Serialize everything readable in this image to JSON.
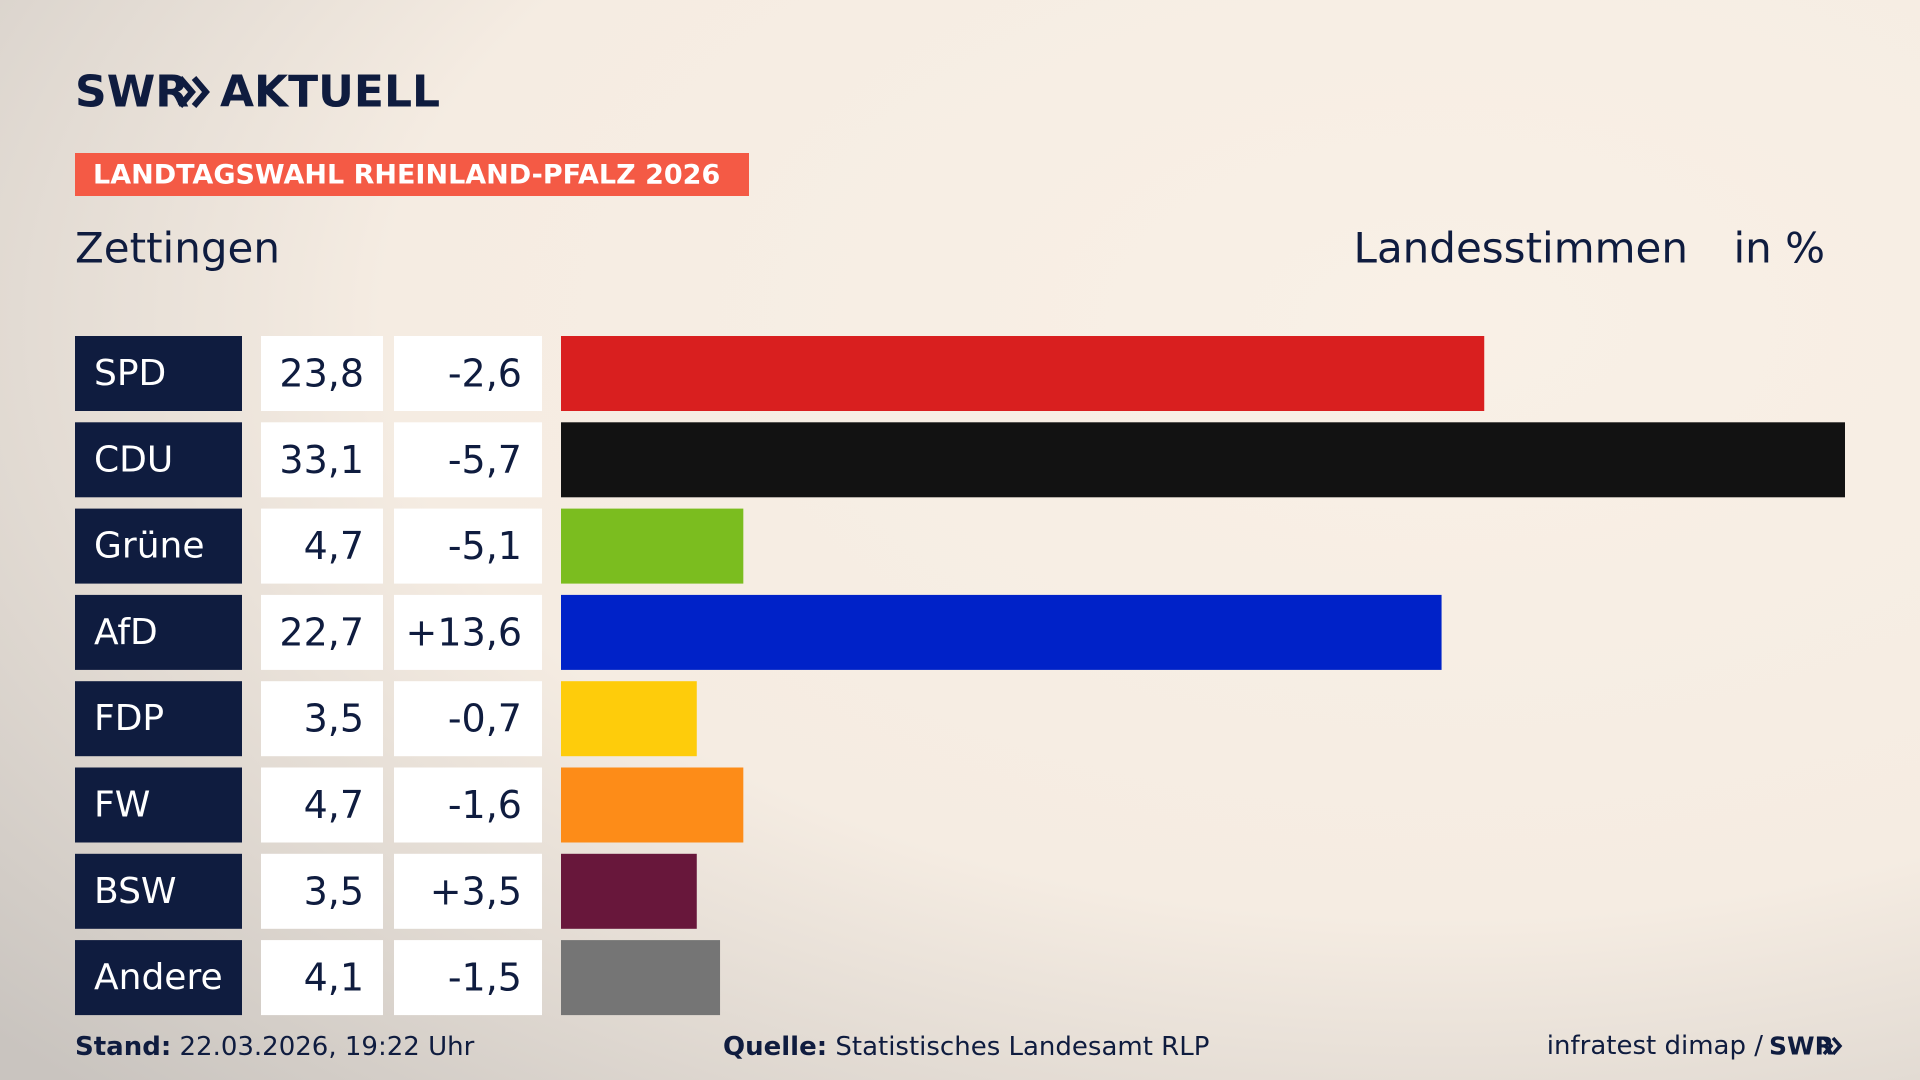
{
  "brand": {
    "logo": "SWR",
    "name": "AKTUELL"
  },
  "tag": "LANDTAGSWAHL RHEINLAND-PFALZ 2026",
  "chart_data": {
    "type": "bar",
    "title": "Zettingen",
    "subtitle": "Landesstimmen",
    "unit": "in %",
    "categories": [
      "SPD",
      "CDU",
      "Grüne",
      "AfD",
      "FDP",
      "FW",
      "BSW",
      "Andere"
    ],
    "values": [
      23.8,
      33.1,
      4.7,
      22.7,
      3.5,
      4.7,
      3.5,
      4.1
    ],
    "value_labels": [
      "23,8",
      "33,1",
      "4,7",
      "22,7",
      "3,5",
      "4,7",
      "3,5",
      "4,1"
    ],
    "changes": [
      -2.6,
      -5.7,
      -5.1,
      13.6,
      -0.7,
      -1.6,
      3.5,
      -1.5
    ],
    "change_labels": [
      "-2,6",
      "-5,7",
      "-5,1",
      "+13,6",
      "-0,7",
      "-1,6",
      "+3,5",
      "-1,5"
    ],
    "colors": [
      "#d91f1f",
      "#121212",
      "#7bbd1f",
      "#0022c8",
      "#fecc0b",
      "#fd8c18",
      "#68173b",
      "#757575"
    ]
  },
  "footer": {
    "stand_label": "Stand:",
    "stand": "22.03.2026, 19:22 Uhr",
    "source_label": "Quelle:",
    "source": "Statistisches Landesamt RLP",
    "credit": "infratest dimap /",
    "credit_logo": "SWR"
  }
}
